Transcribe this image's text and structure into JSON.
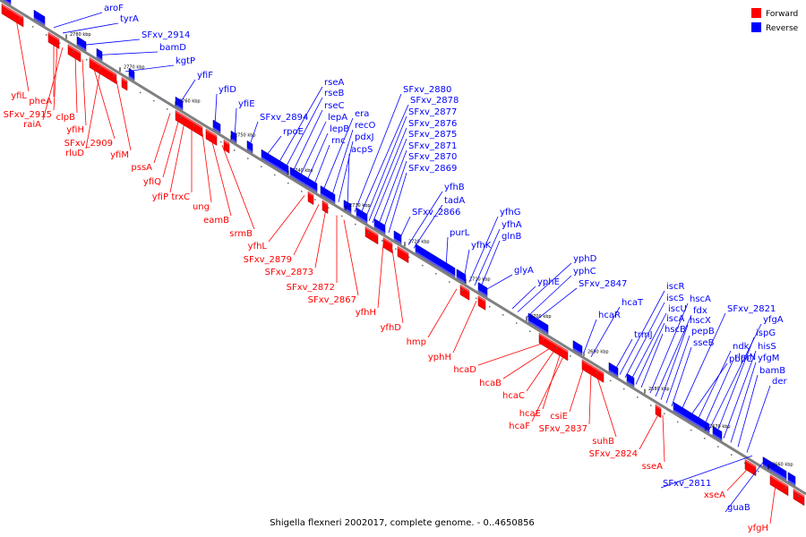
{
  "caption": "Shigella flexneri 2002017, complete genome. - 0..4650856",
  "legend": [
    {
      "label": "Forward",
      "color": "#ff0000"
    },
    {
      "label": "Reverse",
      "color": "#0000ff"
    }
  ],
  "colors": {
    "forward": "#ff0000",
    "reverse": "#0000ff",
    "axis": "#808080"
  },
  "ticks": [
    "2780 kbp",
    "2770 kbp",
    "2760 kbp",
    "2750 kbp",
    "2740 kbp",
    "2730 kbp",
    "2720 kbp",
    "2710 kbp",
    "2700 kbp",
    "2690 kbp",
    "2680 kbp",
    "2670 kbp",
    "2660 kbp"
  ],
  "reverse_labels": [
    "aroF",
    "tyrA",
    "SFxv_2914",
    "bamD",
    "kgtP",
    "yfiF",
    "yfiD",
    "yfiE",
    "SFxv_2894",
    "rpoE",
    "rseA",
    "rseB",
    "rseC",
    "lepA",
    "lepB",
    "rnc",
    "era",
    "recO",
    "pdxJ",
    "acpS",
    "SFxv_2880",
    "SFxv_2878",
    "SFxv_2877",
    "SFxv_2876",
    "SFxv_2875",
    "SFxv_2871",
    "SFxv_2870",
    "SFxv_2869",
    "SFxv_2866",
    "yfhB",
    "tadA",
    "purL",
    "yfhK",
    "yfhG",
    "yfhA",
    "glnB",
    "glyA",
    "yphE",
    "yphD",
    "yphC",
    "SFxv_2847",
    "hcaR",
    "hcaT",
    "trmJ",
    "iscR",
    "iscS",
    "iscU",
    "iscA",
    "hscB",
    "hscA",
    "fdx",
    "hscX",
    "pepB",
    "sseB",
    "SFxv_2821",
    "pbpC",
    "ndk",
    "rlmN",
    "yfgA",
    "ispG",
    "hisS",
    "yfgM",
    "bamB",
    "der",
    "SFxv_2811",
    "guaB"
  ],
  "forward_labels": [
    "yfiL",
    "pheA",
    "SFxv_2915",
    "raiA",
    "clpB",
    "yfiH",
    "SFxv_2909",
    "rluD",
    "yfiM",
    "pssA",
    "yfiQ",
    "yfiP",
    "trxC",
    "ung",
    "eamB",
    "srmB",
    "yfhL",
    "SFxv_2879",
    "SFxv_2873",
    "SFxv_2872",
    "SFxv_2867",
    "yfhH",
    "yfhD",
    "hmp",
    "yphH",
    "hcaD",
    "hcaB",
    "hcaC",
    "hcaE",
    "hcaF",
    "csiE",
    "SFxv_2837",
    "suhB",
    "SFxv_2824",
    "sseA",
    "xseA",
    "yfgH"
  ]
}
